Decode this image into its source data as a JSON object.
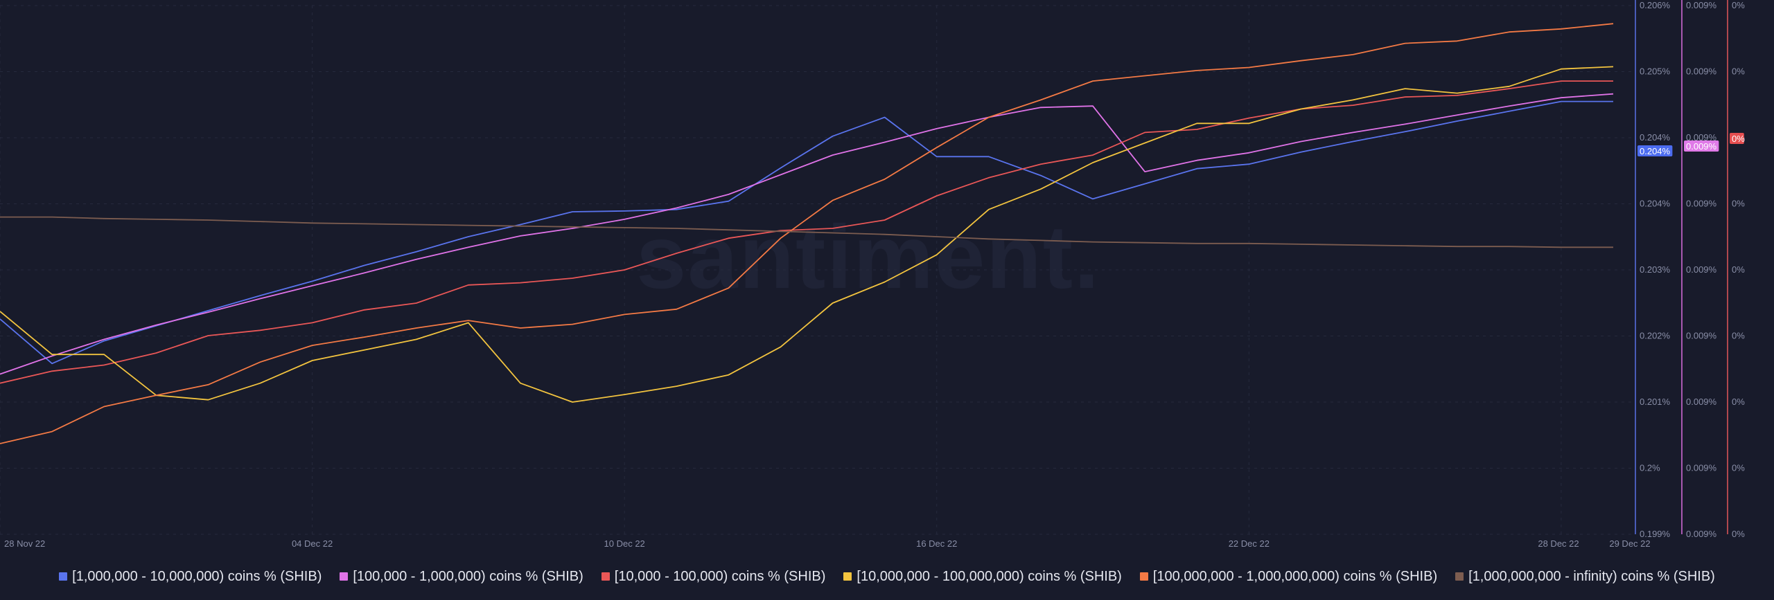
{
  "watermark": "santiment.",
  "chart_data": {
    "type": "line",
    "title": "",
    "xlabel": "",
    "ylabel": "",
    "grid": true,
    "legend_position": "bottom",
    "x": [
      "28 Nov 22",
      "29 Nov 22",
      "30 Nov 22",
      "01 Dec 22",
      "02 Dec 22",
      "03 Dec 22",
      "04 Dec 22",
      "05 Dec 22",
      "06 Dec 22",
      "07 Dec 22",
      "08 Dec 22",
      "09 Dec 22",
      "10 Dec 22",
      "11 Dec 22",
      "12 Dec 22",
      "13 Dec 22",
      "14 Dec 22",
      "15 Dec 22",
      "16 Dec 22",
      "17 Dec 22",
      "18 Dec 22",
      "19 Dec 22",
      "20 Dec 22",
      "21 Dec 22",
      "22 Dec 22",
      "23 Dec 22",
      "24 Dec 22",
      "25 Dec 22",
      "26 Dec 22",
      "27 Dec 22",
      "28 Dec 22",
      "29 Dec 22"
    ],
    "x_ticks": [
      "28 Nov 22",
      "04 Dec 22",
      "10 Dec 22",
      "16 Dec 22",
      "22 Dec 22",
      "28 Dec 22",
      "29 Dec 22"
    ],
    "axes": [
      {
        "id": "a",
        "side": "right",
        "ticks": [
          "0.206%",
          "0.205%",
          "0.204%",
          "0.204%",
          "0.203%",
          "0.202%",
          "0.201%",
          "0.2%",
          "0.199%"
        ],
        "color": "#5b72e8",
        "badge": "0.204%",
        "badge_color": "#4c6cf0",
        "ylim": [
          0.199,
          0.206
        ]
      },
      {
        "id": "b",
        "side": "right",
        "ticks": [
          "0.009%",
          "0.009%",
          "0.009%",
          "0.009%",
          "0.009%",
          "0.009%",
          "0.009%",
          "0.009%",
          "0.009%"
        ],
        "color": "#d96ee0",
        "badge": "0.009%",
        "badge_color": "#e07ae8"
      },
      {
        "id": "c",
        "side": "right",
        "ticks": [
          "0%",
          "0%",
          "0%",
          "0%",
          "0%",
          "0%",
          "0%",
          "0%",
          "0%"
        ],
        "color": "#e2575a",
        "badge": "0%",
        "badge_color": "#e64e50"
      }
    ],
    "series": [
      {
        "name": "[1,000,000 - 10,000,000) coins % (SHIB)",
        "color": "#5a74ee",
        "axis": "a",
        "values": [
          0.20185,
          0.20126,
          0.20156,
          0.20176,
          0.20196,
          0.20216,
          0.20235,
          0.20256,
          0.20274,
          0.20294,
          0.2031,
          0.20327,
          0.20328,
          0.2033,
          0.20341,
          0.20385,
          0.20427,
          0.20452,
          0.204,
          0.204,
          0.20375,
          0.20344,
          0.20364,
          0.20384,
          0.2039,
          0.20406,
          0.2042,
          0.20433,
          0.20447,
          0.2046,
          0.20473,
          0.20473
        ]
      },
      {
        "name": "[100,000  - 1,000,000) coins % (SHIB)",
        "color": "#e073e8",
        "axis": "a",
        "values": [
          0.20112,
          0.20136,
          0.20158,
          0.20177,
          0.20194,
          0.20212,
          0.20229,
          0.20246,
          0.20264,
          0.2028,
          0.20295,
          0.20305,
          0.20317,
          0.20332,
          0.2035,
          0.20376,
          0.20402,
          0.20419,
          0.20437,
          0.20452,
          0.20465,
          0.20467,
          0.2038,
          0.20395,
          0.20405,
          0.2042,
          0.20432,
          0.20443,
          0.20455,
          0.20467,
          0.20478,
          0.20483
        ]
      },
      {
        "name": "[10,000 - 100,000) coins % (SHIB)",
        "color": "#ea5757",
        "axis": "a",
        "values": [
          0.201,
          0.20116,
          0.20124,
          0.2014,
          0.20163,
          0.2017,
          0.2018,
          0.20197,
          0.20206,
          0.2023,
          0.20233,
          0.20239,
          0.2025,
          0.20272,
          0.20292,
          0.20302,
          0.20305,
          0.20316,
          0.20348,
          0.20372,
          0.2039,
          0.20402,
          0.20432,
          0.20436,
          0.20451,
          0.20463,
          0.20468,
          0.20479,
          0.20481,
          0.2049,
          0.205,
          0.205
        ]
      },
      {
        "name": "[10,000,000 - 100,000,000) coins % (SHIB)",
        "color": "#f3c43f",
        "axis": "a",
        "values": [
          0.20195,
          0.20138,
          0.20138,
          0.20084,
          0.20078,
          0.201,
          0.2013,
          0.20144,
          0.20158,
          0.2018,
          0.201,
          0.20075,
          0.20085,
          0.20096,
          0.20111,
          0.20148,
          0.20206,
          0.20234,
          0.2027,
          0.2033,
          0.20357,
          0.20392,
          0.20418,
          0.20444,
          0.20444,
          0.20463,
          0.20475,
          0.2049,
          0.20484,
          0.20493,
          0.20516,
          0.20519
        ]
      },
      {
        "name": "[100,000,000 - 1,000,000,000) coins % (SHIB)",
        "color": "#f47a45",
        "axis": "a",
        "values": [
          0.2002,
          0.20036,
          0.20069,
          0.20084,
          0.20098,
          0.20128,
          0.2015,
          0.20161,
          0.20173,
          0.20183,
          0.20173,
          0.20178,
          0.20191,
          0.20198,
          0.20226,
          0.20292,
          0.20342,
          0.2037,
          0.20412,
          0.20452,
          0.20475,
          0.205,
          0.20507,
          0.20514,
          0.20518,
          0.20527,
          0.20535,
          0.2055,
          0.20553,
          0.20565,
          0.20569,
          0.20576
        ]
      },
      {
        "name": "[1,000,000,000 - infinity) coins % (SHIB)",
        "color": "#7d5d50",
        "axis": "a",
        "values": [
          0.2032,
          0.2032,
          0.20318,
          0.20317,
          0.20316,
          0.20314,
          0.20312,
          0.20311,
          0.2031,
          0.20309,
          0.20308,
          0.20307,
          0.20306,
          0.20305,
          0.20303,
          0.20301,
          0.20299,
          0.20297,
          0.20294,
          0.20291,
          0.20289,
          0.20287,
          0.20286,
          0.20285,
          0.20285,
          0.20284,
          0.20283,
          0.20282,
          0.20281,
          0.20281,
          0.2028,
          0.2028
        ]
      }
    ]
  }
}
